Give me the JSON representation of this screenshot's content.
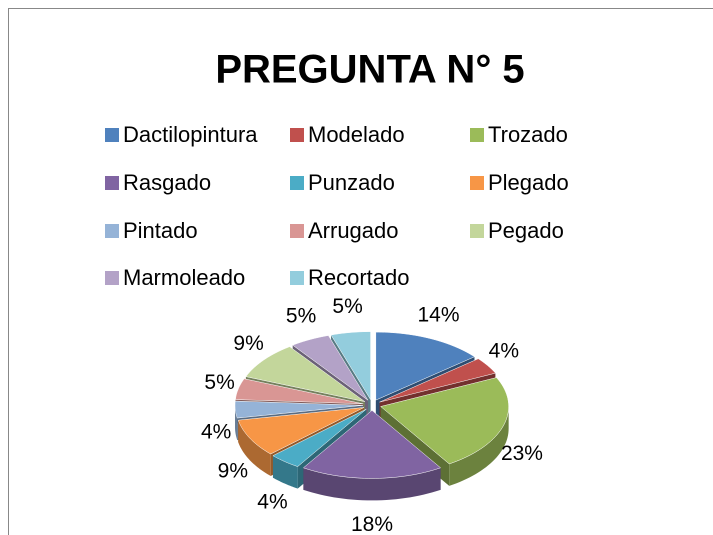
{
  "chart_data": {
    "type": "pie",
    "title": "PREGUNTA N° 5",
    "categories": [
      "Dactilopintura",
      "Modelado",
      "Trozado",
      "Rasgado",
      "Punzado",
      "Plegado",
      "Pintado",
      "Arrugado",
      "Pegado",
      "Marmoleado",
      "Recortado"
    ],
    "values": [
      14,
      4,
      23,
      18,
      4,
      9,
      4,
      5,
      9,
      5,
      5
    ],
    "value_labels": [
      "14%",
      "4%",
      "23%",
      "18%",
      "4%",
      "9%",
      "4%",
      "5%",
      "9%",
      "5%",
      "5%"
    ],
    "colors": [
      "#4F81BD",
      "#C0504D",
      "#9BBB59",
      "#8064A2",
      "#4BACC6",
      "#F79646",
      "#95B3D7",
      "#D99694",
      "#C3D69B",
      "#B3A2C7",
      "#93CDDD"
    ]
  }
}
